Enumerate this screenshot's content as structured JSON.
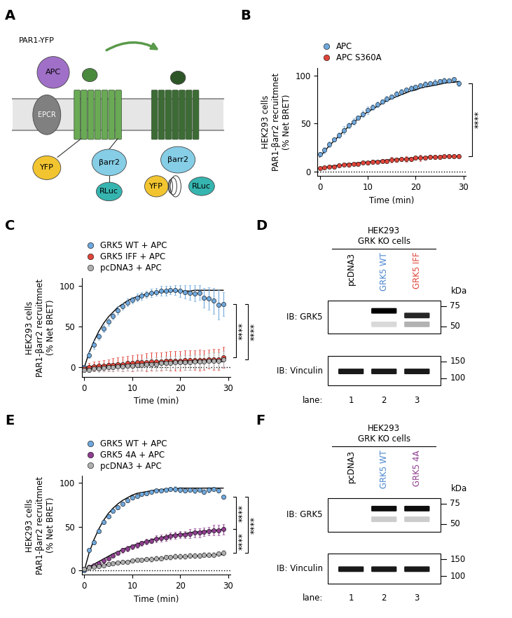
{
  "diagram": {
    "panel": "A",
    "left": {
      "receptor": "PAR1-YFP",
      "ligand": "APC",
      "coreceptor": "EPCR",
      "tag": "YFP",
      "arrestin": "βarr2",
      "luciferase": "RLuc"
    },
    "right": {
      "arrestin": "βarr2",
      "tag": "YFP",
      "luciferase": "RLuc"
    }
  },
  "chart_data": [
    {
      "type": "scatter",
      "panel": "B",
      "marker": "circle",
      "legend": "top",
      "grid": false,
      "baseline": 0,
      "x": [
        0,
        1,
        2,
        3,
        4,
        5,
        6,
        7,
        8,
        9,
        10,
        11,
        12,
        13,
        14,
        15,
        16,
        17,
        18,
        19,
        20,
        21,
        22,
        23,
        24,
        25,
        26,
        27,
        28,
        29
      ],
      "xlim": [
        -0.5,
        30.5
      ],
      "xticks": [
        0,
        10,
        20,
        30
      ],
      "ylim": [
        -5,
        108
      ],
      "yticks": [
        0,
        50,
        100
      ],
      "xlabel": "Time (min)",
      "ylabel": "HEK293 cells\nPAR1-βarr2 recruitmnet\n(% Net BRET)",
      "series": [
        {
          "name": "APC",
          "color": "#6fa8dc",
          "values": [
            18,
            22,
            28,
            33,
            38,
            43,
            48,
            52,
            56,
            60,
            64,
            67,
            70,
            73,
            76,
            78,
            81,
            83,
            85,
            87,
            88,
            90,
            91,
            92,
            93,
            94,
            95,
            95,
            96,
            92
          ],
          "fit": [
            15,
            21,
            27,
            32,
            37,
            42,
            47,
            51,
            55,
            59,
            62,
            65,
            68,
            71,
            74,
            76,
            78,
            80,
            82,
            84,
            85,
            87,
            88,
            89,
            90,
            91,
            92,
            93,
            93,
            94
          ],
          "errors": [
            2,
            3,
            3,
            2,
            3,
            4,
            3,
            3,
            2,
            3,
            4,
            3,
            3,
            2,
            3,
            2,
            3,
            3,
            2,
            3,
            2,
            2,
            3,
            2,
            3,
            2,
            3,
            2,
            2,
            3
          ]
        },
        {
          "name": "APC S360A",
          "color": "#e0453a",
          "values": [
            3,
            4,
            5,
            5,
            6,
            7,
            7,
            8,
            8,
            9,
            9,
            10,
            10,
            11,
            11,
            12,
            12,
            13,
            13,
            13,
            14,
            14,
            14,
            15,
            15,
            15,
            16,
            16,
            16,
            16
          ],
          "fit": [
            3,
            4,
            5,
            6,
            6,
            7,
            8,
            8,
            9,
            9,
            10,
            10,
            11,
            11,
            12,
            12,
            13,
            13,
            13,
            14,
            14,
            14,
            15,
            15,
            15,
            15,
            16,
            16,
            16,
            16
          ],
          "errors": [
            1,
            1,
            1,
            2,
            1,
            1,
            2,
            1,
            2,
            1,
            2,
            2,
            1,
            2,
            2,
            3,
            2,
            2,
            3,
            2,
            2,
            3,
            2,
            2,
            2,
            2,
            1,
            2,
            2,
            2
          ]
        }
      ],
      "significance": [
        {
          "between": [
            "APC",
            "APC S360A"
          ],
          "text": "****"
        }
      ]
    },
    {
      "type": "scatter",
      "panel": "C",
      "marker": "circle",
      "legend": "top",
      "grid": false,
      "baseline": 0,
      "x": [
        0,
        1,
        2,
        3,
        4,
        5,
        6,
        7,
        8,
        9,
        10,
        11,
        12,
        13,
        14,
        15,
        16,
        17,
        18,
        19,
        20,
        21,
        22,
        23,
        24,
        25,
        26,
        27,
        28,
        29
      ],
      "xlim": [
        -0.5,
        30.5
      ],
      "xticks": [
        0,
        10,
        20,
        30
      ],
      "ylim": [
        -12,
        110
      ],
      "yticks": [
        0,
        50,
        100
      ],
      "xlabel": "Time (min)",
      "ylabel": "HEK293 cells\nPAR1-βarr2 recruitmnet\n(% Net BRET)",
      "series": [
        {
          "name": "GRK5 WT + APC",
          "color": "#6fa8dc",
          "values": [
            0,
            15,
            28,
            38,
            48,
            56,
            63,
            70,
            75,
            80,
            83,
            86,
            88,
            90,
            92,
            93,
            94,
            94,
            95,
            95,
            94,
            93,
            92,
            91,
            92,
            86,
            85,
            82,
            77,
            78
          ],
          "fit": [
            0,
            18,
            32,
            44,
            54,
            62,
            68,
            74,
            78,
            82,
            85,
            87,
            89,
            90,
            91,
            92,
            93,
            93,
            94,
            94,
            94,
            94,
            94,
            95,
            95,
            95,
            95,
            95,
            95,
            95
          ],
          "errors": [
            3,
            4,
            5,
            4,
            5,
            5,
            4,
            5,
            4,
            5,
            4,
            5,
            5,
            4,
            5,
            5,
            6,
            6,
            5,
            6,
            7,
            8,
            9,
            10,
            9,
            12,
            14,
            16,
            18,
            15
          ]
        },
        {
          "name": "GRK5 IFF + APC",
          "color": "#e0453a",
          "values": [
            -2,
            0,
            1,
            2,
            2,
            3,
            3,
            4,
            4,
            5,
            5,
            6,
            6,
            6,
            7,
            7,
            7,
            8,
            8,
            8,
            8,
            9,
            9,
            9,
            9,
            9,
            10,
            10,
            10,
            12
          ],
          "fit": [
            0,
            1,
            1,
            2,
            2,
            3,
            3,
            4,
            4,
            4,
            5,
            5,
            5,
            6,
            6,
            6,
            7,
            7,
            7,
            7,
            8,
            8,
            8,
            8,
            9,
            9,
            9,
            9,
            9,
            10
          ],
          "errors": [
            3,
            5,
            6,
            6,
            7,
            7,
            8,
            8,
            9,
            9,
            10,
            10,
            10,
            11,
            11,
            11,
            11,
            11,
            12,
            12,
            12,
            12,
            12,
            12,
            13,
            12,
            12,
            13,
            13,
            13
          ]
        },
        {
          "name": "pcDNA3 + APC",
          "color": "#b0b0b0",
          "values": [
            -3,
            -3,
            -2,
            -2,
            -1,
            0,
            0,
            1,
            1,
            2,
            2,
            3,
            3,
            4,
            4,
            4,
            5,
            5,
            5,
            6,
            6,
            6,
            6,
            7,
            7,
            7,
            8,
            8,
            8,
            10
          ],
          "fit": [
            -3,
            -2,
            -2,
            -1,
            -1,
            0,
            0,
            1,
            1,
            1,
            2,
            2,
            3,
            3,
            3,
            4,
            4,
            4,
            5,
            5,
            5,
            5,
            6,
            6,
            6,
            6,
            7,
            7,
            7,
            7
          ],
          "errors": [
            2,
            3,
            3,
            4,
            4,
            5,
            5,
            5,
            6,
            6,
            6,
            7,
            7,
            7,
            7,
            8,
            8,
            8,
            8,
            8,
            8,
            9,
            9,
            9,
            9,
            9,
            9,
            10,
            10,
            10
          ]
        }
      ],
      "significance": [
        {
          "between": [
            "GRK5 WT + APC",
            "GRK5 IFF + APC"
          ],
          "text": "****"
        },
        {
          "between": [
            "GRK5 WT + APC",
            "pcDNA3 + APC"
          ],
          "text": "****"
        }
      ]
    },
    {
      "type": "scatter",
      "panel": "E",
      "marker": "circle",
      "legend": "top",
      "grid": false,
      "baseline": 0,
      "x": [
        0,
        1,
        2,
        3,
        4,
        5,
        6,
        7,
        8,
        9,
        10,
        11,
        12,
        13,
        14,
        15,
        16,
        17,
        18,
        19,
        20,
        21,
        22,
        23,
        24,
        25,
        26,
        27,
        28,
        29
      ],
      "xlim": [
        -0.5,
        30.5
      ],
      "xticks": [
        0,
        10,
        20,
        30
      ],
      "ylim": [
        -5,
        108
      ],
      "yticks": [
        0,
        50,
        100
      ],
      "xlabel": "Time (min)",
      "ylabel": "HEK293 cells\nPAR1-βarr2 recruitmnet\n(% Net BRET)",
      "series": [
        {
          "name": "GRK5 WT + APC",
          "color": "#6fa8dc",
          "values": [
            0,
            23,
            32,
            45,
            55,
            62,
            68,
            72,
            76,
            80,
            83,
            85,
            87,
            88,
            90,
            91,
            91,
            92,
            93,
            93,
            92,
            91,
            92,
            91,
            92,
            90,
            92,
            93,
            91,
            84
          ],
          "fit": [
            0,
            20,
            35,
            47,
            57,
            65,
            71,
            76,
            80,
            83,
            86,
            88,
            89,
            90,
            91,
            92,
            92,
            93,
            93,
            93,
            94,
            94,
            94,
            94,
            94,
            94,
            94,
            94,
            94,
            94
          ],
          "errors": [
            1,
            2,
            2,
            2,
            2,
            2,
            2,
            2,
            2,
            2,
            2,
            2,
            2,
            2,
            2,
            2,
            2,
            2,
            2,
            3,
            3,
            2,
            2,
            3,
            2,
            3,
            3,
            2,
            2,
            2
          ]
        },
        {
          "name": "GRK5 4A + APC",
          "color": "#8e3e8e",
          "values": [
            2,
            4,
            6,
            8,
            11,
            14,
            17,
            20,
            23,
            25,
            27,
            29,
            31,
            33,
            34,
            36,
            37,
            38,
            39,
            40,
            41,
            41,
            42,
            43,
            43,
            44,
            45,
            46,
            46,
            47
          ],
          "fit": [
            1,
            4,
            7,
            10,
            13,
            16,
            19,
            21,
            24,
            26,
            28,
            30,
            32,
            33,
            35,
            36,
            37,
            39,
            40,
            41,
            41,
            42,
            43,
            44,
            44,
            45,
            45,
            46,
            46,
            47
          ],
          "errors": [
            1,
            1,
            1,
            2,
            2,
            2,
            2,
            2,
            3,
            3,
            3,
            3,
            3,
            3,
            3,
            4,
            4,
            4,
            4,
            4,
            4,
            4,
            5,
            5,
            5,
            5,
            5,
            6,
            6,
            6
          ]
        },
        {
          "name": "pcDNA3 + APC",
          "color": "#b0b0b0",
          "values": [
            2,
            3,
            4,
            5,
            6,
            7,
            8,
            9,
            10,
            10,
            11,
            12,
            12,
            13,
            13,
            14,
            14,
            15,
            15,
            16,
            16,
            16,
            17,
            17,
            17,
            18,
            18,
            18,
            19,
            20
          ],
          "fit": [
            2,
            3,
            4,
            5,
            6,
            7,
            8,
            9,
            9,
            10,
            11,
            11,
            12,
            12,
            13,
            13,
            14,
            14,
            15,
            15,
            15,
            16,
            16,
            16,
            17,
            17,
            17,
            18,
            18,
            18
          ],
          "errors": [
            1,
            1,
            1,
            1,
            1,
            2,
            2,
            2,
            2,
            2,
            2,
            2,
            2,
            2,
            3,
            3,
            3,
            3,
            3,
            3,
            3,
            3,
            3,
            3,
            3,
            3,
            3,
            3,
            3,
            3
          ]
        }
      ],
      "significance": [
        {
          "between": [
            "GRK5 WT + APC",
            "GRK5 4A + APC"
          ],
          "text": "****"
        },
        {
          "between": [
            "GRK5 4A + APC",
            "pcDNA3 + APC"
          ],
          "text": "****"
        },
        {
          "between": [
            "GRK5 WT + APC",
            "pcDNA3 + APC"
          ],
          "text": "****"
        }
      ]
    }
  ],
  "blots": [
    {
      "panel": "D",
      "header": [
        "HEK293",
        "GRK KO cells"
      ],
      "kda_label": "kDa",
      "lane_title": "lane:",
      "lanes": [
        {
          "label": "pcDNA3",
          "color": "#000000",
          "number": 1
        },
        {
          "label": "GRK5 WT",
          "color": "#4a86d0",
          "number": 2
        },
        {
          "label": "GRK5 IFF",
          "color": "#e0453a",
          "number": 3
        }
      ],
      "panels": [
        {
          "antibody": "IB: GRK5",
          "markers": [
            75,
            50
          ],
          "bands": [
            {
              "lane": 2,
              "kda": 68,
              "strength": 1.0
            },
            {
              "lane": 3,
              "kda": 62,
              "strength": 0.85
            },
            {
              "lane": 2,
              "kda": 52,
              "strength": 0.15
            },
            {
              "lane": 3,
              "kda": 52,
              "strength": 0.3
            }
          ]
        },
        {
          "antibody": "IB: Vinculin",
          "markers": [
            150,
            100
          ],
          "bands": [
            {
              "lane": 1,
              "kda": 118,
              "strength": 0.9
            },
            {
              "lane": 2,
              "kda": 118,
              "strength": 0.9
            },
            {
              "lane": 3,
              "kda": 118,
              "strength": 0.9
            }
          ]
        }
      ]
    },
    {
      "panel": "F",
      "header": [
        "HEK293",
        "GRK KO cells"
      ],
      "kda_label": "kDa",
      "lane_title": "lane:",
      "lanes": [
        {
          "label": "pcDNA3",
          "color": "#000000",
          "number": 1
        },
        {
          "label": "GRK5 WT",
          "color": "#4a86d0",
          "number": 2
        },
        {
          "label": "GRK5 4A",
          "color": "#8e3e8e",
          "number": 3
        }
      ],
      "panels": [
        {
          "antibody": "IB: GRK5",
          "markers": [
            75,
            50
          ],
          "bands": [
            {
              "lane": 2,
              "kda": 68,
              "strength": 0.95
            },
            {
              "lane": 3,
              "kda": 68,
              "strength": 0.95
            },
            {
              "lane": 2,
              "kda": 55,
              "strength": 0.2
            },
            {
              "lane": 3,
              "kda": 55,
              "strength": 0.2
            }
          ]
        },
        {
          "antibody": "IB: Vinculin",
          "markers": [
            150,
            100
          ],
          "bands": [
            {
              "lane": 1,
              "kda": 118,
              "strength": 0.9
            },
            {
              "lane": 2,
              "kda": 118,
              "strength": 0.9
            },
            {
              "lane": 3,
              "kda": 118,
              "strength": 0.9
            }
          ]
        }
      ]
    }
  ]
}
